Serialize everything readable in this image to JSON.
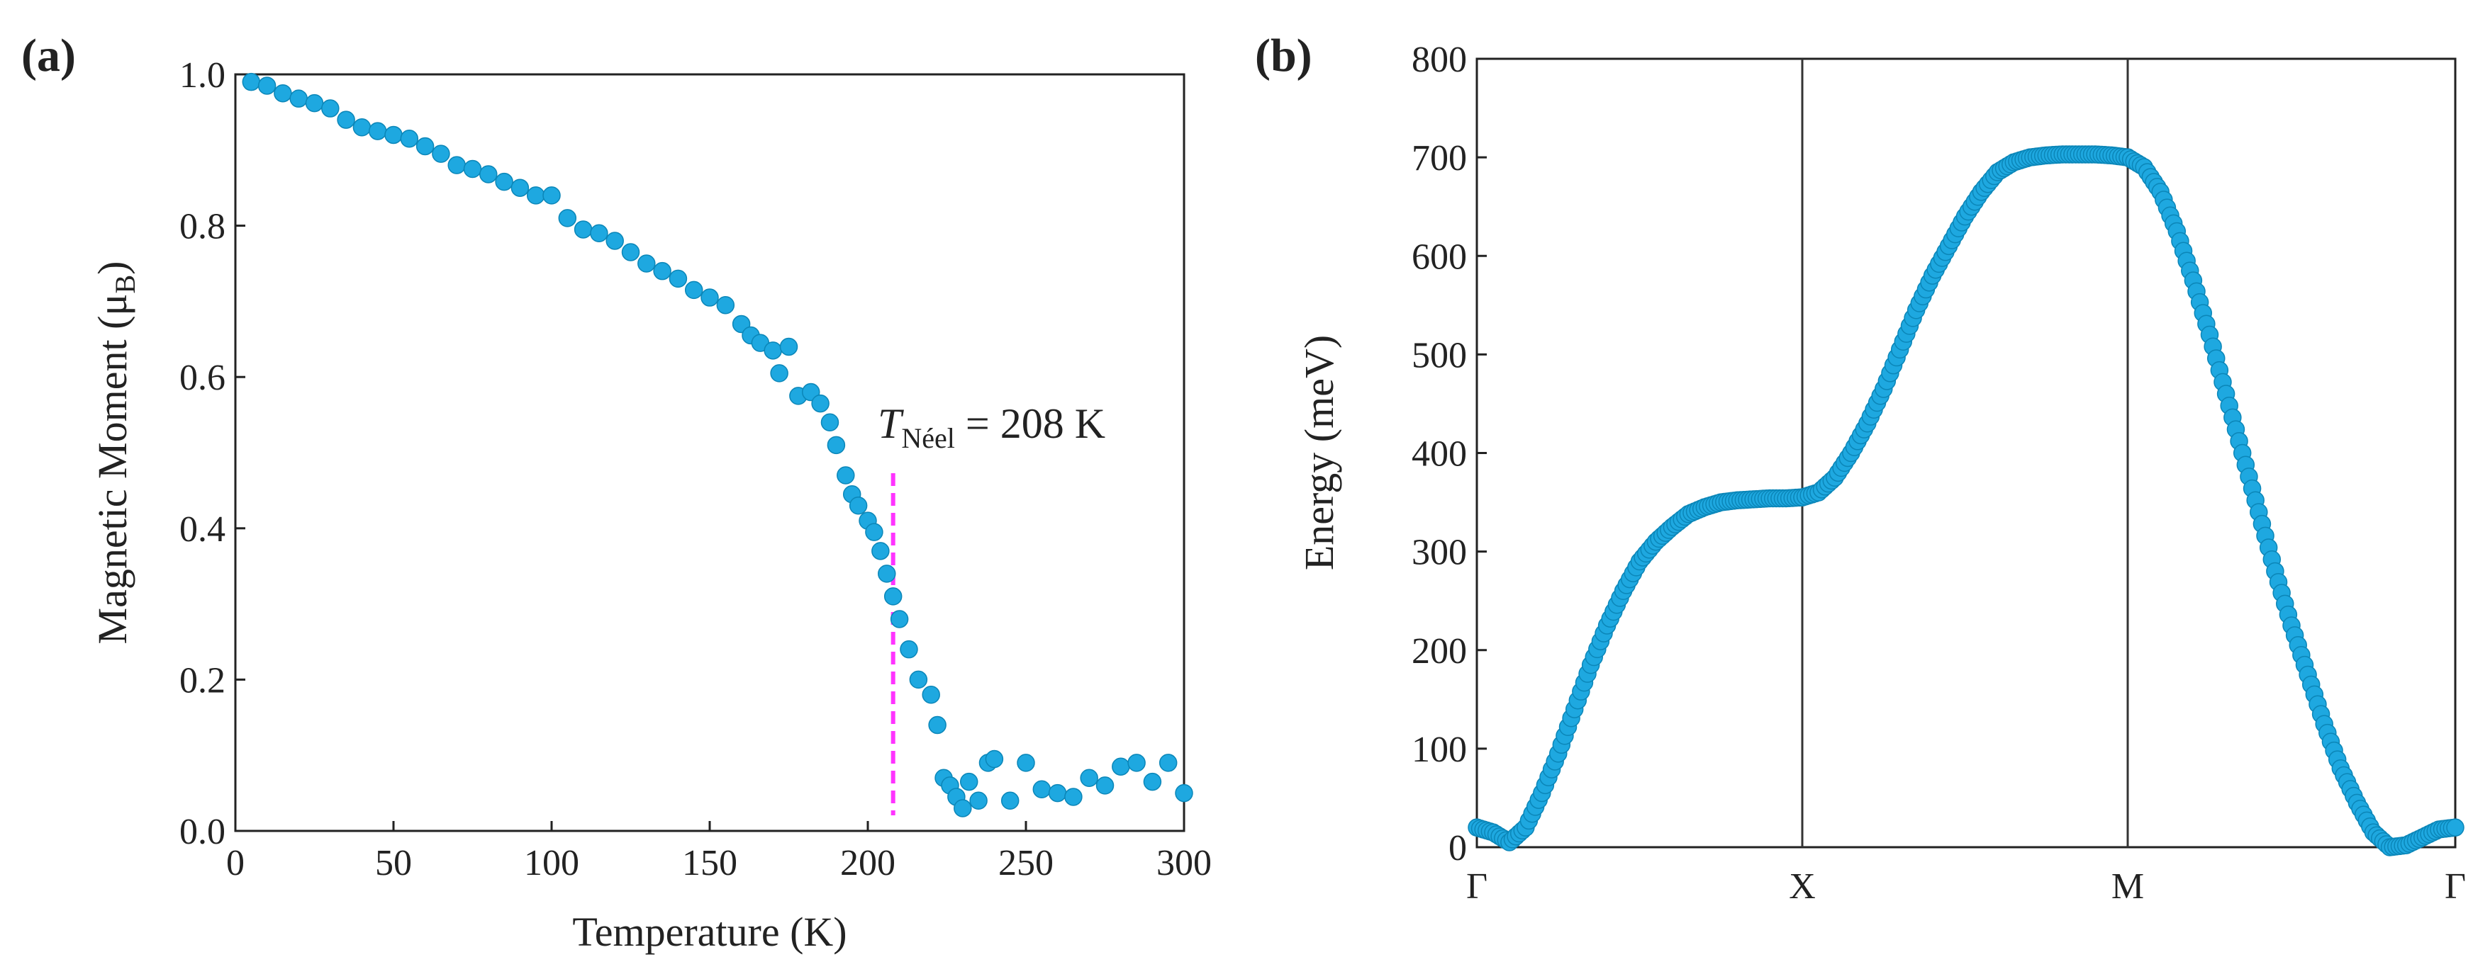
{
  "panel_a": {
    "label": "(a)",
    "annotation_T": "T",
    "annotation_sub": "Néel",
    "annotation_value": " = 208 K"
  },
  "panel_b": {
    "label": "(b)"
  },
  "colors": {
    "points": "#1ea8e0",
    "marker_line": "#ff33ff",
    "axes": "#222222"
  },
  "chart_data": [
    {
      "type": "scatter",
      "xlabel": "Temperature (K)",
      "ylabel_main": "Magnetic Moment (μ",
      "ylabel_sub": "B",
      "ylabel_end": ")",
      "xlim": [
        0,
        300
      ],
      "ylim": [
        0,
        1.0
      ],
      "xticks": [
        0,
        50,
        100,
        150,
        200,
        250,
        300
      ],
      "yticks": [
        "0.0",
        "0.2",
        "0.4",
        "0.6",
        "0.8",
        "1.0"
      ],
      "vline_x": 208,
      "series": [
        {
          "x": [
            5,
            10,
            15,
            20,
            25,
            30,
            35,
            40,
            45,
            50,
            55,
            60,
            65,
            70,
            75,
            80,
            85,
            90,
            95,
            100,
            105,
            110,
            115,
            120,
            125,
            130,
            135,
            140,
            145,
            150,
            155,
            160,
            163,
            166,
            170,
            172,
            175,
            178,
            182,
            185,
            188,
            190,
            193,
            195,
            197,
            200,
            202,
            204,
            206,
            208,
            210,
            213,
            216,
            220,
            222,
            224,
            226,
            228,
            230,
            232,
            235,
            238,
            240,
            245,
            250,
            255,
            260,
            265,
            270,
            275,
            280,
            285,
            290,
            295,
            300
          ],
          "y": [
            0.99,
            0.985,
            0.975,
            0.968,
            0.962,
            0.955,
            0.94,
            0.93,
            0.925,
            0.92,
            0.915,
            0.905,
            0.895,
            0.88,
            0.875,
            0.868,
            0.858,
            0.85,
            0.84,
            0.84,
            0.81,
            0.795,
            0.79,
            0.78,
            0.765,
            0.75,
            0.74,
            0.73,
            0.715,
            0.705,
            0.695,
            0.67,
            0.655,
            0.645,
            0.635,
            0.605,
            0.64,
            0.575,
            0.58,
            0.565,
            0.54,
            0.51,
            0.47,
            0.445,
            0.43,
            0.41,
            0.395,
            0.37,
            0.34,
            0.31,
            0.28,
            0.24,
            0.2,
            0.18,
            0.14,
            0.07,
            0.06,
            0.045,
            0.03,
            0.065,
            0.04,
            0.09,
            0.095,
            0.04,
            0.09,
            0.055,
            0.05,
            0.045,
            0.07,
            0.06,
            0.085,
            0.09,
            0.065,
            0.09,
            0.05
          ]
        }
      ]
    },
    {
      "type": "scatter",
      "ylabel": "Energy (meV)",
      "xticks": [
        "Γ",
        "X",
        "M",
        "Γ"
      ],
      "ylim": [
        0,
        800
      ],
      "yticks": [
        0,
        100,
        200,
        300,
        400,
        500,
        600,
        700,
        800
      ],
      "series": [
        {
          "segments": [
            {
              "from": "Γ",
              "to": "X",
              "x": [
                0,
                0.05,
                0.1,
                0.15,
                0.2,
                0.25,
                0.3,
                0.35,
                0.4,
                0.45,
                0.5,
                0.55,
                0.6,
                0.65,
                0.7,
                0.75,
                0.8,
                0.85,
                0.9,
                0.95,
                1.0
              ],
              "y": [
                20,
                15,
                5,
                20,
                55,
                95,
                140,
                185,
                225,
                260,
                290,
                310,
                325,
                338,
                345,
                350,
                352,
                353,
                354,
                354,
                355
              ]
            },
            {
              "from": "X",
              "to": "M",
              "x": [
                0,
                0.05,
                0.1,
                0.15,
                0.2,
                0.25,
                0.3,
                0.35,
                0.4,
                0.45,
                0.5,
                0.55,
                0.6,
                0.65,
                0.7,
                0.75,
                0.8,
                0.85,
                0.9,
                0.95,
                1.0
              ],
              "y": [
                355,
                360,
                375,
                400,
                430,
                465,
                505,
                545,
                580,
                610,
                640,
                665,
                685,
                695,
                700,
                702,
                703,
                703,
                703,
                702,
                700
              ]
            },
            {
              "from": "M",
              "to": "Γ",
              "x": [
                0,
                0.05,
                0.1,
                0.15,
                0.2,
                0.25,
                0.3,
                0.35,
                0.4,
                0.45,
                0.5,
                0.55,
                0.6,
                0.65,
                0.7,
                0.75,
                0.8,
                0.85,
                0.9,
                0.95,
                1.0
              ],
              "y": [
                700,
                690,
                665,
                625,
                575,
                520,
                460,
                400,
                340,
                280,
                225,
                175,
                125,
                80,
                45,
                15,
                0,
                2,
                10,
                18,
                20
              ]
            }
          ]
        }
      ]
    }
  ]
}
